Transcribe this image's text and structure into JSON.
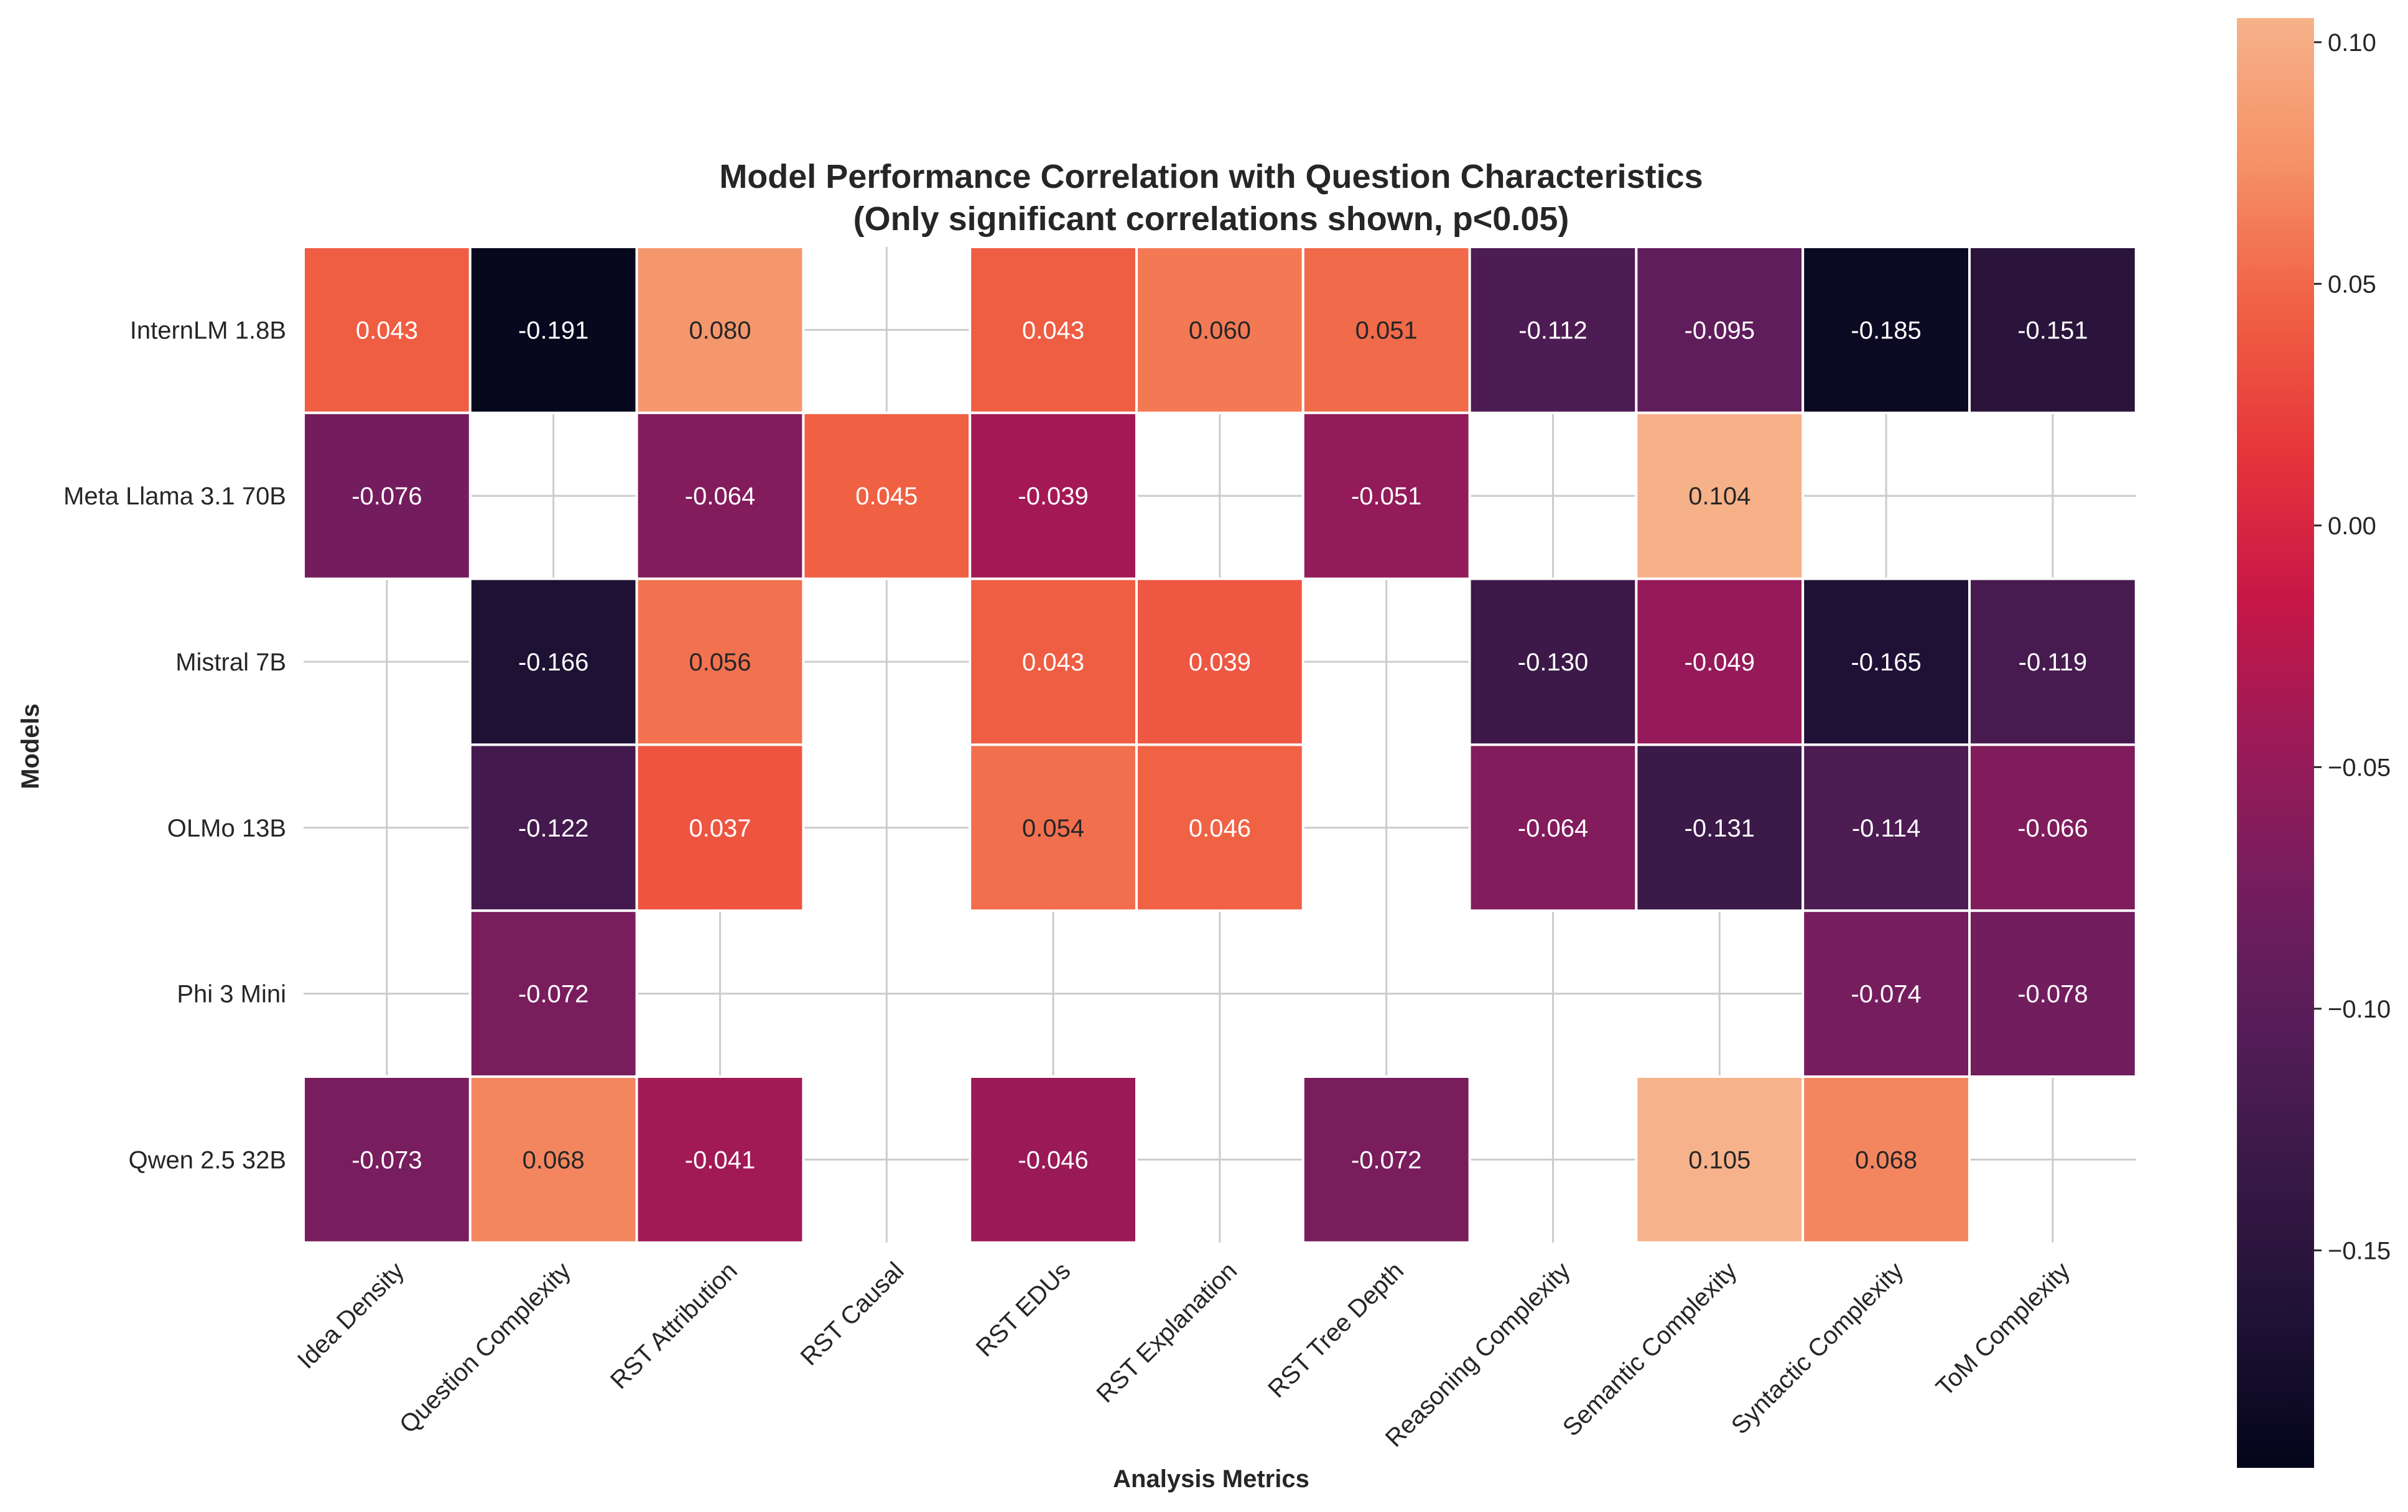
{
  "chart_data": {
    "type": "heatmap",
    "title": "Model Performance Correlation with Question Characteristics",
    "subtitle": "(Only significant correlations shown, p<0.05)",
    "xlabel": "Analysis Metrics",
    "ylabel": "Models",
    "columns": [
      "Idea Density",
      "Question Complexity",
      "RST Attribution",
      "RST Causal",
      "RST EDUs",
      "RST Explanation",
      "RST Tree Depth",
      "Reasoning Complexity",
      "Semantic Complexity",
      "Syntactic Complexity",
      "ToM Complexity"
    ],
    "rows": [
      "InternLM 1.8B",
      "Meta Llama 3.1 70B",
      "Mistral 7B",
      "OLMo 13B",
      "Phi 3 Mini",
      "Qwen 2.5 32B"
    ],
    "values": [
      [
        0.043,
        -0.191,
        0.08,
        null,
        0.043,
        0.06,
        0.051,
        -0.112,
        -0.095,
        -0.185,
        -0.151
      ],
      [
        -0.076,
        null,
        -0.064,
        0.045,
        -0.039,
        null,
        -0.051,
        null,
        0.104,
        null,
        null
      ],
      [
        null,
        -0.166,
        0.056,
        null,
        0.043,
        0.039,
        null,
        -0.13,
        -0.049,
        -0.165,
        -0.119
      ],
      [
        null,
        -0.122,
        0.037,
        null,
        0.054,
        0.046,
        null,
        -0.064,
        -0.131,
        -0.114,
        -0.066
      ],
      [
        null,
        -0.072,
        null,
        null,
        null,
        null,
        null,
        null,
        null,
        -0.074,
        -0.078
      ],
      [
        -0.073,
        0.068,
        -0.041,
        null,
        -0.046,
        null,
        -0.072,
        null,
        0.105,
        0.068,
        null
      ]
    ],
    "value_format": "3 decimals",
    "colormap": "rocket",
    "colorbar": {
      "min": -0.195,
      "max": 0.105,
      "ticks": [
        0.1,
        0.05,
        0.0,
        -0.05,
        -0.1,
        -0.15
      ],
      "tick_labels": [
        "0.10",
        "0.05",
        "0.00",
        "−0.05",
        "−0.10",
        "−0.15"
      ],
      "placement": "right"
    },
    "grid": true,
    "missing_cells": "blank (not significant)"
  }
}
